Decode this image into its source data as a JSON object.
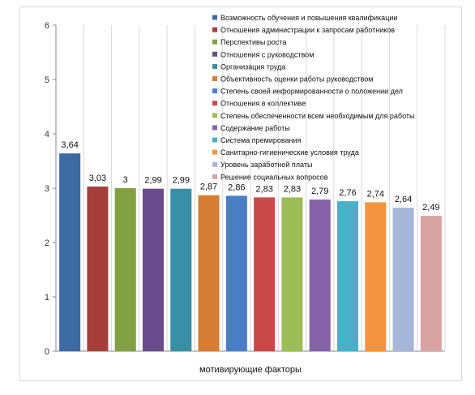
{
  "chart_data": {
    "type": "bar",
    "title": "",
    "xlabel": "мотивирующие факторы",
    "ylabel": "",
    "ylim": [
      0,
      6
    ],
    "yticks": [
      0,
      1,
      2,
      3,
      4,
      5,
      6
    ],
    "grid": "vertical",
    "legend_position": "top-right",
    "bars": [
      {
        "name": "Возможность обучения и повышения квалификации",
        "value": 3.64,
        "label": "3,64",
        "color": "#3e6aa3"
      },
      {
        "name": "Отношения администрации к запросам работников",
        "value": 3.03,
        "label": "3,03",
        "color": "#a53f3c"
      },
      {
        "name": "Перспективы роста",
        "value": 3.0,
        "label": "3",
        "color": "#83a043"
      },
      {
        "name": "Отношения с руководством",
        "value": 2.99,
        "label": "2,99",
        "color": "#6a4c8c"
      },
      {
        "name": "Организация труда",
        "value": 2.99,
        "label": "2,99",
        "color": "#3b8ea3"
      },
      {
        "name": "Объективность оценки работы руководством",
        "value": 2.87,
        "label": "2,87",
        "color": "#d57d33"
      },
      {
        "name": "Степень своей информированности о положении дел",
        "value": 2.86,
        "label": "2,86",
        "color": "#4a7ec4"
      },
      {
        "name": "Отношения в коллективе",
        "value": 2.83,
        "label": "2,83",
        "color": "#c9494a"
      },
      {
        "name": "Степень обеспеченности всем необходимым для работы",
        "value": 2.83,
        "label": "2,83",
        "color": "#9dbd56"
      },
      {
        "name": "Содержание работы",
        "value": 2.79,
        "label": "2,79",
        "color": "#8462a8"
      },
      {
        "name": "Система премирования",
        "value": 2.76,
        "label": "2,76",
        "color": "#48b1c8"
      },
      {
        "name": "Санитарно-гигиенические условия труда",
        "value": 2.74,
        "label": "2,74",
        "color": "#f29543"
      },
      {
        "name": "Уровень заработной платы",
        "value": 2.64,
        "label": "2,64",
        "color": "#a5b6d8"
      },
      {
        "name": "Решение социальных вопросов",
        "value": 2.49,
        "label": "2,49",
        "color": "#d8a3a3"
      }
    ]
  }
}
